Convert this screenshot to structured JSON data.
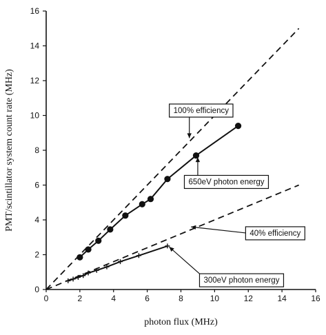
{
  "chart_data": {
    "type": "line",
    "xlabel": "photon flux (MHz)",
    "ylabel": "PMT/scintillator system count rate (MHz)",
    "xlim": [
      0,
      16
    ],
    "ylim": [
      0,
      16
    ],
    "xticks": [
      0,
      2,
      4,
      6,
      8,
      10,
      12,
      14,
      16
    ],
    "yticks": [
      0,
      2,
      4,
      6,
      8,
      10,
      12,
      14,
      16
    ],
    "grid": false,
    "series": [
      {
        "style": "dashed",
        "color": "#111111",
        "x": [
          0,
          15
        ],
        "y": [
          0,
          15
        ]
      },
      {
        "style": "dashed",
        "color": "#111111",
        "x": [
          0,
          15
        ],
        "y": [
          0,
          6
        ]
      },
      {
        "style": "solid-circle-markers",
        "color": "#111111",
        "x": [
          2.0,
          2.5,
          3.1,
          3.8,
          4.7,
          5.7,
          6.2,
          7.2,
          8.9,
          11.4
        ],
        "y": [
          1.85,
          2.3,
          2.8,
          3.45,
          4.25,
          4.9,
          5.2,
          6.35,
          7.7,
          9.4
        ]
      },
      {
        "style": "solid-plus-markers",
        "color": "#111111",
        "x": [
          1.3,
          1.6,
          1.9,
          2.2,
          2.5,
          3.0,
          3.6,
          4.4,
          5.5,
          7.2
        ],
        "y": [
          0.5,
          0.6,
          0.7,
          0.8,
          0.95,
          1.1,
          1.3,
          1.6,
          1.95,
          2.5
        ]
      }
    ],
    "annotations": [
      {
        "text": "100% efficiency",
        "x": 9.2,
        "y": 10.3,
        "arrow_to": [
          8.5,
          8.7
        ]
      },
      {
        "text": "650eV photon energy",
        "x": 10.7,
        "y": 6.2,
        "arrow_to": [
          9.0,
          7.6
        ]
      },
      {
        "text": "40% efficiency",
        "x": 13.6,
        "y": 3.25,
        "arrow_to": [
          8.6,
          3.6
        ]
      },
      {
        "text": "300eV photon energy",
        "x": 11.6,
        "y": 0.55,
        "arrow_to": [
          7.3,
          2.45
        ]
      }
    ]
  }
}
